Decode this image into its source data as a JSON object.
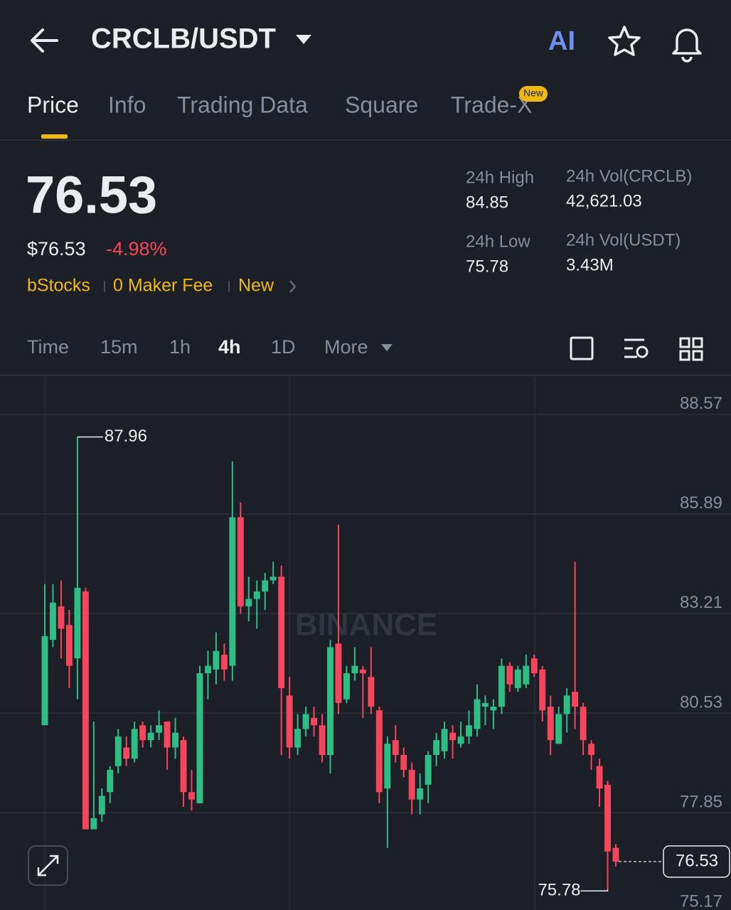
{
  "header": {
    "title": "CRCLB/USDT"
  },
  "tabs": [
    "Price",
    "Info",
    "Trading Data",
    "Square",
    "Trade-X"
  ],
  "tab_badge": "New",
  "ticker": {
    "price": "76.53",
    "usd_price": "$76.53",
    "change": "-4.98%",
    "tags": [
      "bStocks",
      "0 Maker Fee",
      "New"
    ],
    "stats": [
      {
        "label": "24h High",
        "value": "84.85"
      },
      {
        "label": "24h Vol(CRCLB)",
        "value": "42,621.03"
      },
      {
        "label": "24h Low",
        "value": "75.78"
      },
      {
        "label": "24h Vol(USDT)",
        "value": "3.43M"
      }
    ]
  },
  "intervals": [
    "Time",
    "15m",
    "1h",
    "4h",
    "1D",
    "More"
  ],
  "watermark": "BINANCE",
  "chart_data": {
    "type": "candlestick",
    "up_color": "#2ebd85",
    "down_color": "#f6465d",
    "ylim": [
      75.17,
      89.58
    ],
    "yticks": [
      88.57,
      85.89,
      83.21,
      80.53,
      77.85,
      75.17
    ],
    "grid": true,
    "open": [
      80.2,
      82.5,
      83.4,
      82.9,
      82.0,
      83.8,
      77.4,
      77.8,
      78.4,
      79.1,
      79.6,
      79.3,
      80.2,
      79.8,
      80.0,
      80.3,
      79.6,
      79.8,
      78.4,
      78.1,
      81.6,
      81.7,
      82.1,
      81.8,
      85.8,
      83.4,
      83.6,
      83.8,
      84.1,
      84.2,
      81.0,
      79.6,
      80.1,
      80.4,
      80.2,
      79.4,
      82.4,
      80.9,
      81.6,
      81.7,
      81.5,
      80.6,
      78.5,
      79.8,
      79.4,
      79.0,
      78.2,
      78.6,
      79.4,
      79.5,
      80.0,
      79.7,
      79.9,
      80.1,
      80.7,
      80.6,
      80.7,
      81.8,
      81.2,
      81.3,
      82.0,
      81.7,
      80.7,
      79.7,
      80.5,
      81.1,
      80.7,
      79.7,
      79.1,
      78.6,
      76.9
    ],
    "high": [
      84.0,
      84.0,
      84.1,
      83.3,
      87.96,
      83.9,
      80.3,
      78.5,
      79.1,
      80.1,
      79.9,
      80.3,
      80.3,
      80.2,
      80.6,
      80.3,
      80.4,
      79.9,
      79.0,
      81.8,
      82.2,
      82.7,
      82.4,
      87.3,
      86.2,
      84.2,
      84.1,
      84.3,
      84.6,
      84.5,
      81.5,
      80.5,
      80.7,
      80.7,
      80.5,
      82.5,
      85.6,
      81.8,
      82.3,
      81.8,
      82.3,
      80.7,
      79.9,
      80.2,
      79.6,
      79.2,
      78.9,
      79.5,
      80.0,
      80.3,
      80.2,
      80.3,
      80.6,
      81.3,
      81.0,
      80.9,
      82.0,
      81.9,
      81.8,
      82.1,
      82.1,
      81.8,
      81.0,
      80.7,
      81.2,
      84.6,
      80.8,
      79.8,
      79.3,
      78.7,
      77.0
    ],
    "low": [
      80.2,
      82.3,
      82.0,
      81.2,
      80.9,
      77.4,
      77.4,
      77.6,
      78.1,
      78.9,
      79.1,
      79.2,
      79.6,
      79.6,
      79.8,
      79.0,
      79.3,
      78.0,
      77.9,
      78.1,
      80.9,
      81.3,
      81.4,
      81.4,
      83.2,
      83.0,
      82.8,
      83.3,
      84.0,
      79.4,
      79.3,
      79.4,
      79.9,
      79.9,
      79.2,
      78.9,
      80.5,
      80.8,
      81.4,
      80.4,
      80.5,
      78.1,
      76.9,
      79.2,
      78.8,
      77.8,
      77.8,
      78.1,
      79.1,
      79.3,
      79.3,
      79.6,
      79.7,
      79.9,
      80.2,
      80.1,
      80.5,
      81.1,
      81.1,
      81.2,
      81.5,
      80.3,
      79.4,
      79.7,
      80.0,
      80.1,
      79.4,
      79.0,
      78.0,
      75.78,
      76.4
    ],
    "close": [
      82.6,
      83.5,
      82.8,
      81.8,
      83.9,
      77.4,
      77.7,
      78.3,
      79.0,
      79.9,
      79.3,
      80.1,
      79.8,
      80.0,
      80.2,
      79.6,
      80.0,
      78.4,
      78.2,
      81.6,
      81.8,
      82.2,
      81.7,
      85.8,
      83.4,
      83.6,
      83.8,
      84.1,
      84.2,
      81.2,
      79.6,
      80.1,
      80.5,
      80.2,
      79.4,
      82.3,
      80.8,
      81.6,
      81.8,
      81.6,
      80.7,
      78.4,
      79.7,
      79.4,
      79.0,
      78.2,
      78.5,
      79.4,
      79.8,
      80.1,
      79.8,
      79.9,
      80.2,
      80.9,
      80.8,
      80.7,
      81.8,
      81.3,
      81.7,
      81.8,
      81.6,
      80.6,
      79.8,
      80.5,
      81.0,
      80.7,
      79.8,
      79.4,
      78.5,
      76.8,
      76.53
    ]
  }
}
